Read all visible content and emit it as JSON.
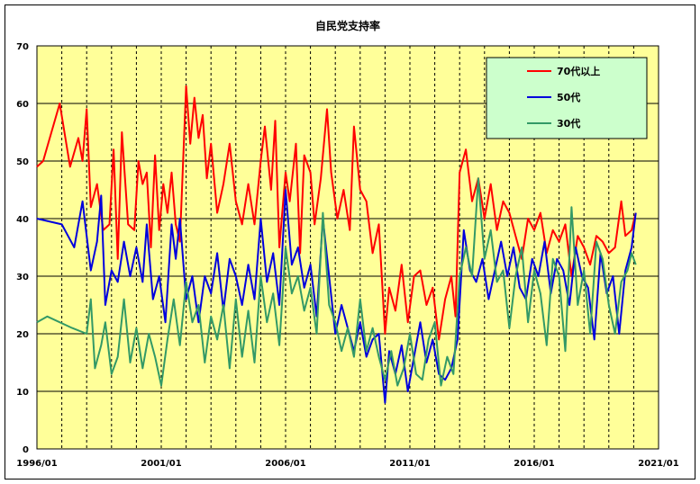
{
  "chart_data": {
    "type": "line",
    "title": "自民党支持率",
    "xlabel": "",
    "ylabel": "",
    "ylim": [
      0,
      70
    ],
    "yticks": [
      "0",
      "10",
      "20",
      "30",
      "40",
      "50",
      "60",
      "70"
    ],
    "xlim": [
      "1996/01",
      "2021/01"
    ],
    "xticks": [
      "1996/01",
      "2001/01",
      "2006/01",
      "2011/01",
      "2016/01",
      "2021/01"
    ],
    "grid": {
      "horizontal": "solid",
      "vertical": "dashed-yearly"
    },
    "legend_position": "top-right",
    "background_color": "#ffff99",
    "legend_background": "#ccffcc",
    "series": [
      {
        "name": "70代以上",
        "color": "#ff0000",
        "x": [
          "1996/01",
          "1996/04",
          "1996/12",
          "1997/05",
          "1997/09",
          "1997/11",
          "1998/01",
          "1998/03",
          "1998/06",
          "1998/09",
          "1998/12",
          "1999/02",
          "1999/04",
          "1999/06",
          "1999/09",
          "1999/12",
          "2000/02",
          "2000/04",
          "2000/06",
          "2000/08",
          "2000/10",
          "2000/12",
          "2001/02",
          "2001/04",
          "2001/06",
          "2001/08",
          "2001/10",
          "2002/01",
          "2002/03",
          "2002/05",
          "2002/07",
          "2002/09",
          "2002/11",
          "2003/01",
          "2003/04",
          "2003/07",
          "2003/10",
          "2004/01",
          "2004/04",
          "2004/07",
          "2004/10",
          "2005/01",
          "2005/03",
          "2005/06",
          "2005/08",
          "2005/10",
          "2006/01",
          "2006/03",
          "2006/06",
          "2006/08",
          "2006/10",
          "2007/01",
          "2007/03",
          "2007/06",
          "2007/09",
          "2007/11",
          "2008/02",
          "2008/05",
          "2008/08",
          "2008/10",
          "2009/01",
          "2009/04",
          "2009/07",
          "2009/10",
          "2010/01",
          "2010/03",
          "2010/06",
          "2010/09",
          "2010/12",
          "2011/03",
          "2011/06",
          "2011/09",
          "2011/12",
          "2012/03",
          "2012/06",
          "2012/09",
          "2012/11",
          "2013/01",
          "2013/04",
          "2013/07",
          "2013/10",
          "2014/01",
          "2014/04",
          "2014/07",
          "2014/10",
          "2015/01",
          "2015/04",
          "2015/07",
          "2015/10",
          "2016/01",
          "2016/04",
          "2016/07",
          "2016/10",
          "2017/01",
          "2017/04",
          "2017/07",
          "2017/10",
          "2018/01",
          "2018/04",
          "2018/07",
          "2018/10",
          "2019/01",
          "2019/04",
          "2019/07",
          "2019/09",
          "2019/12",
          "2020/02"
        ],
        "values": [
          49,
          50,
          60,
          49,
          54,
          50,
          59,
          42,
          46,
          38,
          39,
          52,
          33,
          55,
          39,
          38,
          50,
          46,
          48,
          35,
          51,
          38,
          46,
          41,
          48,
          39,
          36,
          63,
          53,
          61,
          54,
          58,
          47,
          53,
          41,
          46,
          53,
          43,
          39,
          46,
          39,
          50,
          56,
          45,
          57,
          35,
          48,
          43,
          53,
          34,
          51,
          48,
          39,
          47,
          59,
          48,
          40,
          45,
          38,
          56,
          45,
          43,
          34,
          39,
          20,
          28,
          24,
          32,
          22,
          30,
          31,
          25,
          28,
          19,
          26,
          30,
          23,
          48,
          52,
          43,
          47,
          40,
          46,
          38,
          43,
          41,
          37,
          33,
          40,
          38,
          41,
          34,
          38,
          36,
          39,
          30,
          37,
          35,
          32,
          37,
          36,
          34,
          35,
          43,
          37,
          38,
          41
        ]
      },
      {
        "name": "50代",
        "color": "#0000dd",
        "x": [
          "1996/01",
          "1997/01",
          "1997/07",
          "1997/11",
          "1998/03",
          "1998/06",
          "1998/08",
          "1998/10",
          "1999/01",
          "1999/04",
          "1999/07",
          "1999/10",
          "2000/01",
          "2000/04",
          "2000/06",
          "2000/09",
          "2000/12",
          "2001/03",
          "2001/06",
          "2001/08",
          "2001/10",
          "2002/01",
          "2002/04",
          "2002/07",
          "2002/10",
          "2003/01",
          "2003/04",
          "2003/07",
          "2003/10",
          "2004/01",
          "2004/04",
          "2004/07",
          "2004/10",
          "2005/01",
          "2005/04",
          "2005/07",
          "2005/10",
          "2006/01",
          "2006/04",
          "2006/07",
          "2006/10",
          "2007/01",
          "2007/04",
          "2007/07",
          "2007/10",
          "2008/01",
          "2008/04",
          "2008/07",
          "2008/10",
          "2009/01",
          "2009/04",
          "2009/07",
          "2009/10",
          "2010/01",
          "2010/03",
          "2010/06",
          "2010/09",
          "2010/12",
          "2011/03",
          "2011/06",
          "2011/09",
          "2011/12",
          "2012/03",
          "2012/06",
          "2012/09",
          "2012/12",
          "2013/03",
          "2013/06",
          "2013/09",
          "2013/12",
          "2014/03",
          "2014/06",
          "2014/09",
          "2014/12",
          "2015/03",
          "2015/06",
          "2015/09",
          "2015/12",
          "2016/03",
          "2016/06",
          "2016/09",
          "2016/12",
          "2017/03",
          "2017/06",
          "2017/09",
          "2017/12",
          "2018/03",
          "2018/06",
          "2018/09",
          "2018/12",
          "2019/03",
          "2019/06",
          "2019/09",
          "2019/12",
          "2020/02"
        ],
        "values": [
          40,
          39,
          35,
          43,
          31,
          36,
          44,
          25,
          31,
          29,
          36,
          30,
          35,
          29,
          39,
          26,
          30,
          22,
          39,
          33,
          40,
          26,
          30,
          22,
          30,
          27,
          34,
          24,
          33,
          30,
          25,
          32,
          26,
          40,
          29,
          34,
          25,
          45,
          32,
          35,
          28,
          32,
          23,
          40,
          30,
          20,
          25,
          21,
          17,
          22,
          16,
          19,
          20,
          8,
          17,
          13,
          18,
          10,
          16,
          22,
          15,
          19,
          13,
          12,
          14,
          19,
          38,
          31,
          29,
          33,
          26,
          31,
          36,
          30,
          35,
          28,
          26,
          33,
          30,
          36,
          27,
          33,
          31,
          25,
          35,
          30,
          28,
          19,
          34,
          27,
          30,
          20,
          31,
          35,
          41
        ]
      },
      {
        "name": "30代",
        "color": "#339966",
        "x": [
          "1996/01",
          "1996/06",
          "1997/06",
          "1998/01",
          "1998/03",
          "1998/05",
          "1998/08",
          "1998/10",
          "1999/01",
          "1999/04",
          "1999/07",
          "1999/10",
          "2000/01",
          "2000/04",
          "2000/07",
          "2000/10",
          "2001/01",
          "2001/04",
          "2001/07",
          "2001/10",
          "2002/01",
          "2002/04",
          "2002/07",
          "2002/10",
          "2003/01",
          "2003/04",
          "2003/07",
          "2003/10",
          "2004/01",
          "2004/04",
          "2004/07",
          "2004/10",
          "2005/01",
          "2005/04",
          "2005/07",
          "2005/10",
          "2006/01",
          "2006/04",
          "2006/07",
          "2006/10",
          "2007/01",
          "2007/04",
          "2007/07",
          "2007/10",
          "2008/01",
          "2008/04",
          "2008/07",
          "2008/10",
          "2009/01",
          "2009/04",
          "2009/07",
          "2009/10",
          "2010/01",
          "2010/04",
          "2010/07",
          "2010/10",
          "2011/01",
          "2011/04",
          "2011/07",
          "2011/10",
          "2012/01",
          "2012/04",
          "2012/07",
          "2012/10",
          "2013/01",
          "2013/04",
          "2013/07",
          "2013/10",
          "2014/01",
          "2014/04",
          "2014/07",
          "2014/10",
          "2015/01",
          "2015/04",
          "2015/07",
          "2015/10",
          "2016/01",
          "2016/04",
          "2016/07",
          "2016/10",
          "2017/01",
          "2017/04",
          "2017/07",
          "2017/10",
          "2018/01",
          "2018/04",
          "2018/07",
          "2018/10",
          "2019/01",
          "2019/04",
          "2019/07",
          "2019/10",
          "2019/12",
          "2020/02"
        ],
        "values": [
          22,
          23,
          21,
          20,
          26,
          14,
          18,
          22,
          13,
          16,
          26,
          15,
          21,
          14,
          20,
          16,
          11,
          19,
          26,
          18,
          29,
          22,
          25,
          15,
          23,
          19,
          25,
          14,
          26,
          16,
          24,
          15,
          30,
          22,
          27,
          18,
          35,
          27,
          30,
          24,
          28,
          20,
          41,
          25,
          22,
          17,
          21,
          16,
          26,
          17,
          21,
          16,
          12,
          17,
          11,
          14,
          20,
          13,
          12,
          19,
          22,
          11,
          16,
          13,
          30,
          35,
          30,
          47,
          33,
          38,
          29,
          31,
          21,
          30,
          35,
          22,
          31,
          27,
          18,
          33,
          30,
          17,
          42,
          25,
          31,
          20,
          36,
          33,
          25,
          20,
          29,
          31,
          34,
          32
        ]
      }
    ]
  }
}
